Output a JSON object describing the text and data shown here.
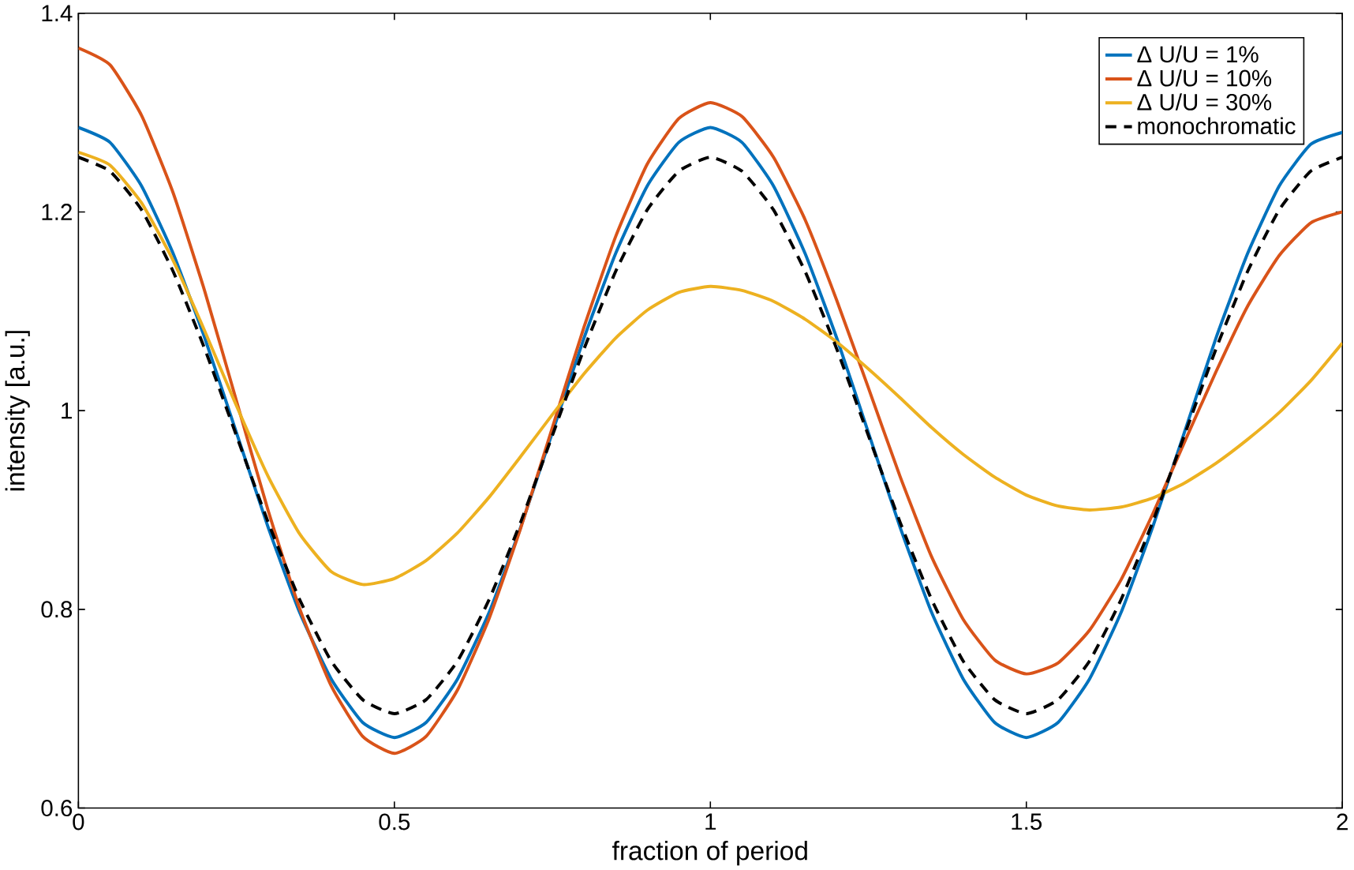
{
  "chart_data": {
    "type": "line",
    "xlabel": "fraction of period",
    "ylabel": "intensity [a.u.]",
    "x": [
      0,
      0.05,
      0.1,
      0.15,
      0.2,
      0.25,
      0.3,
      0.35,
      0.4,
      0.45,
      0.5,
      0.55,
      0.6,
      0.65,
      0.7,
      0.75,
      0.8,
      0.85,
      0.9,
      0.95,
      1,
      1.05,
      1.1,
      1.15,
      1.2,
      1.25,
      1.3,
      1.35,
      1.4,
      1.45,
      1.5,
      1.55,
      1.6,
      1.65,
      1.7,
      1.75,
      1.8,
      1.85,
      1.9,
      1.95,
      2
    ],
    "xlim": [
      0,
      2
    ],
    "ylim": [
      0.6,
      1.4
    ],
    "xticks": [
      0,
      0.5,
      1,
      1.5,
      2
    ],
    "yticks": [
      0.6,
      0.8,
      1,
      1.2,
      1.4
    ],
    "grid": false,
    "legend": "top right",
    "marker": "none",
    "series": [
      {
        "name": "Δ U/U = 1%",
        "color": "#0072bd",
        "line_style": "solid",
        "values": [
          1.285,
          1.27,
          1.226,
          1.158,
          1.073,
          0.978,
          0.883,
          0.797,
          0.73,
          0.686,
          0.671,
          0.686,
          0.73,
          0.797,
          0.883,
          0.978,
          1.073,
          1.158,
          1.226,
          1.27,
          1.285,
          1.27,
          1.226,
          1.158,
          1.073,
          0.978,
          0.883,
          0.797,
          0.73,
          0.686,
          0.671,
          0.686,
          0.73,
          0.797,
          0.883,
          0.978,
          1.073,
          1.158,
          1.226,
          1.268,
          1.28
        ]
      },
      {
        "name": "Δ U/U = 10%",
        "color": "#d95319",
        "line_style": "solid",
        "values": [
          1.365,
          1.348,
          1.297,
          1.219,
          1.12,
          1.01,
          0.9,
          0.801,
          0.723,
          0.672,
          0.655,
          0.672,
          0.719,
          0.791,
          0.882,
          0.983,
          1.084,
          1.175,
          1.248,
          1.294,
          1.31,
          1.296,
          1.255,
          1.192,
          1.111,
          1.023,
          0.934,
          0.853,
          0.79,
          0.749,
          0.735,
          0.746,
          0.779,
          0.83,
          0.896,
          0.968,
          1.039,
          1.105,
          1.156,
          1.189,
          1.2
        ]
      },
      {
        "name": "Δ U/U = 30%",
        "color": "#edb120",
        "line_style": "solid",
        "values": [
          1.26,
          1.247,
          1.209,
          1.151,
          1.08,
          1.005,
          0.934,
          0.876,
          0.838,
          0.825,
          0.831,
          0.849,
          0.877,
          0.913,
          0.954,
          0.996,
          1.037,
          1.073,
          1.101,
          1.119,
          1.125,
          1.121,
          1.11,
          1.092,
          1.069,
          1.042,
          1.013,
          0.983,
          0.956,
          0.933,
          0.915,
          0.904,
          0.9,
          0.903,
          0.912,
          0.927,
          0.947,
          0.971,
          0.998,
          1.03,
          1.068
        ]
      },
      {
        "name": "monochromatic",
        "color": "#000000",
        "line_style": "dashed",
        "values": [
          1.255,
          1.241,
          1.202,
          1.14,
          1.062,
          0.975,
          0.888,
          0.81,
          0.748,
          0.709,
          0.695,
          0.709,
          0.748,
          0.81,
          0.888,
          0.975,
          1.062,
          1.14,
          1.202,
          1.241,
          1.255,
          1.241,
          1.202,
          1.14,
          1.062,
          0.975,
          0.888,
          0.81,
          0.748,
          0.709,
          0.695,
          0.709,
          0.748,
          0.81,
          0.888,
          0.975,
          1.062,
          1.14,
          1.202,
          1.241,
          1.255
        ]
      }
    ]
  }
}
